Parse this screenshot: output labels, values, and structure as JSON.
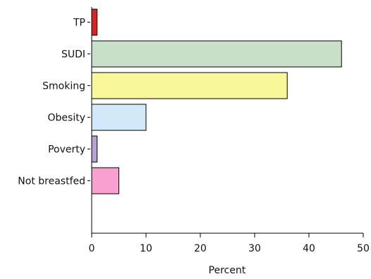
{
  "chart_data": {
    "type": "bar",
    "orientation": "horizontal",
    "title": "",
    "xlabel": "Percent",
    "ylabel": "",
    "categories": [
      "TP",
      "SUDI",
      "Smoking",
      "Obesity",
      "Poverty",
      "Not breastfed"
    ],
    "values": [
      1,
      46,
      36,
      10,
      1,
      5
    ],
    "colors": [
      "#dd2222",
      "#c8e0c8",
      "#f8f898",
      "#d2eaf8",
      "#b8a2d2",
      "#f8a0d0"
    ],
    "xlim": [
      0,
      50
    ],
    "xticks": [
      "0",
      "10",
      "20",
      "30",
      "40",
      "50"
    ],
    "grid": false,
    "legend": "none"
  }
}
